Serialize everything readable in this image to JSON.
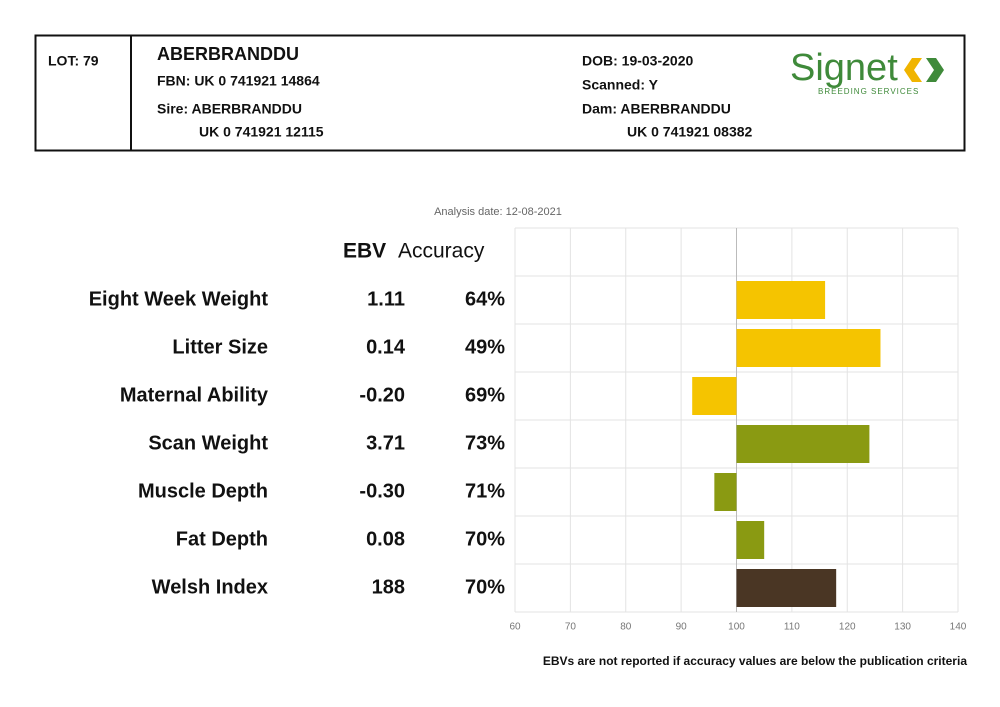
{
  "header": {
    "lot": "LOT: 79",
    "name": "ABERBRANDDU",
    "fbn": "FBN: UK 0 741921 14864",
    "sire": "Sire: ABERBRANDDU",
    "sire_id": "UK 0 741921 12115",
    "dob": "DOB: 19-03-2020",
    "scanned": "Scanned: Y",
    "dam": "Dam: ABERBRANDDU",
    "dam_id": "UK 0 741921 08382",
    "logo": "Signet",
    "logo_sub": "BREEDING SERVICES"
  },
  "analysis_date": "Analysis date: 12-08-2021",
  "table": {
    "columns": [
      "EBV",
      "Accuracy"
    ],
    "rows": [
      [
        "Eight Week Weight",
        "1.11",
        "64%"
      ],
      [
        "Litter Size",
        "0.14",
        "49%"
      ],
      [
        "Maternal Ability",
        "-0.20",
        "69%"
      ],
      [
        "Scan Weight",
        "3.71",
        "73%"
      ],
      [
        "Muscle Depth",
        "-0.30",
        "71%"
      ],
      [
        "Fat Depth",
        "0.08",
        "70%"
      ],
      [
        "Welsh Index",
        "188",
        "70%"
      ]
    ]
  },
  "chart": {
    "type": "bar",
    "orientation": "horizontal",
    "baseline": 100,
    "values": [
      116,
      126,
      92,
      124,
      96,
      105,
      118
    ],
    "colors": [
      "#f5c400",
      "#f5c400",
      "#f5c400",
      "#8a9a12",
      "#8a9a12",
      "#8a9a12",
      "#4a3624"
    ],
    "xlim": [
      60,
      140
    ],
    "xticks": [
      60,
      70,
      80,
      90,
      100,
      110,
      120,
      130,
      140
    ],
    "grid": true
  },
  "footnote": "EBVs are not reported if accuracy values are below the publication criteria"
}
